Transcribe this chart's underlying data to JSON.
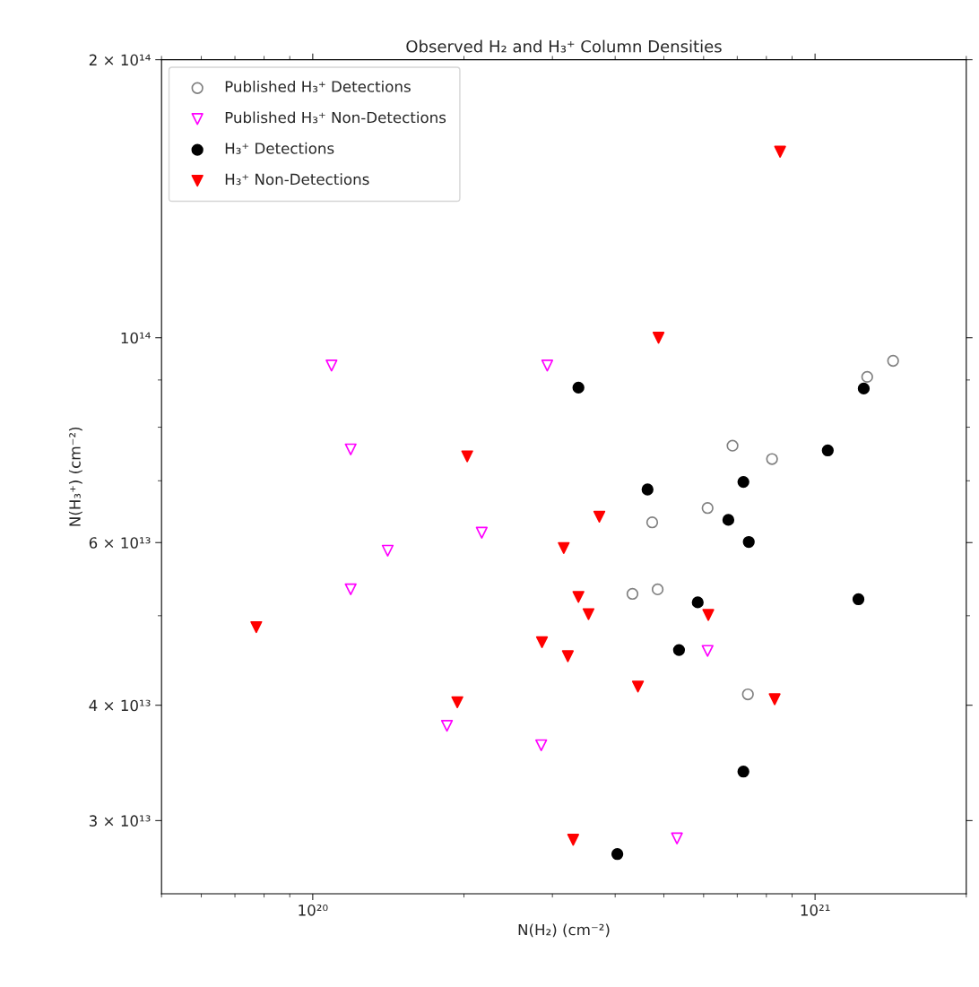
{
  "chart_data": {
    "type": "scatter",
    "title": "Observed H₂ and H₃⁺ Column Densities",
    "xlabel": "N(H₂) (cm⁻²)",
    "ylabel": "N(H₃⁺) (cm⁻²)",
    "log": "xy",
    "xlim": [
      5e+19,
      2e+21
    ],
    "ylim": [
      25000000000000.0,
      200000000000000.0
    ],
    "xticks": [
      {
        "value": 1e+20,
        "label": "10²⁰"
      },
      {
        "value": 1e+21,
        "label": "10²¹"
      }
    ],
    "yticks": [
      {
        "value": 30000000000000.0,
        "label": "3 × 10¹³"
      },
      {
        "value": 40000000000000.0,
        "label": "4 × 10¹³"
      },
      {
        "value": 60000000000000.0,
        "label": "6 × 10¹³"
      },
      {
        "value": 100000000000000.0,
        "label": "10¹⁴"
      },
      {
        "value": 200000000000000.0,
        "label": "2 × 10¹⁴"
      }
    ],
    "grid": false,
    "legend": "top left",
    "series": [
      {
        "name": "Published H₃⁺ Detections",
        "color": "#808080",
        "marker": "circle",
        "x": [
          1.43e+21,
          1.27e+21,
          6.85e+20,
          8.21e+20,
          6.11e+20,
          4.74e+20,
          4.86e+20,
          4.33e+20,
          7.35e+20
        ],
        "values": [
          94400000000000.0,
          90700000000000.0,
          76400000000000.0,
          73900000000000.0,
          65400000000000.0,
          63100000000000.0,
          53400000000000.0,
          52800000000000.0,
          41100000000000.0
        ]
      },
      {
        "name": "Published H₃⁺ Non-Detections",
        "color": "#ff00ff",
        "marker": "triangle",
        "x": [
          1.09e+20,
          2.93e+20,
          1.19e+20,
          2.17e+20,
          1.41e+20,
          1.19e+20,
          6.11e+20,
          1.85e+20,
          2.85e+20,
          5.31e+20
        ],
        "values": [
          93300000000000.0,
          93300000000000.0,
          75700000000000.0,
          61500000000000.0,
          58800000000000.0,
          53400000000000.0,
          45800000000000.0,
          38000000000000.0,
          36200000000000.0,
          28700000000000.0
        ]
      },
      {
        "name": "H₃⁺ Detections",
        "color": "#000000",
        "marker": "circle",
        "x": [
          3.38e+20,
          1.25e+21,
          1.06e+21,
          4.64e+20,
          7.2e+20,
          6.72e+20,
          7.38e+20,
          1.22e+21,
          5.84e+20,
          5.36e+20,
          7.2e+20,
          4.04e+20
        ],
        "values": [
          88300000000000.0,
          88100000000000.0,
          75500000000000.0,
          68500000000000.0,
          69800000000000.0,
          63500000000000.0,
          60100000000000.0,
          52100000000000.0,
          51700000000000.0,
          45900000000000.0,
          33900000000000.0,
          27600000000000.0
        ]
      },
      {
        "name": "H₃⁺ Non-Detections",
        "color": "#ff0000",
        "marker": "triangle",
        "x": [
          8.52e+20,
          4.88e+20,
          2.03e+20,
          3.72e+20,
          3.16e+20,
          3.38e+20,
          3.54e+20,
          6.13e+20,
          7.72e+19,
          2.86e+20,
          3.22e+20,
          4.44e+20,
          8.31e+20,
          1.94e+20,
          3.3e+20
        ],
        "values": [
          159000000000000.0,
          100000000000000.0,
          74400000000000.0,
          64000000000000.0,
          59200000000000.0,
          52400000000000.0,
          50200000000000.0,
          50100000000000.0,
          48600000000000.0,
          46800000000000.0,
          45200000000000.0,
          41900000000000.0,
          40600000000000.0,
          40300000000000.0,
          28600000000000.0
        ]
      }
    ]
  }
}
